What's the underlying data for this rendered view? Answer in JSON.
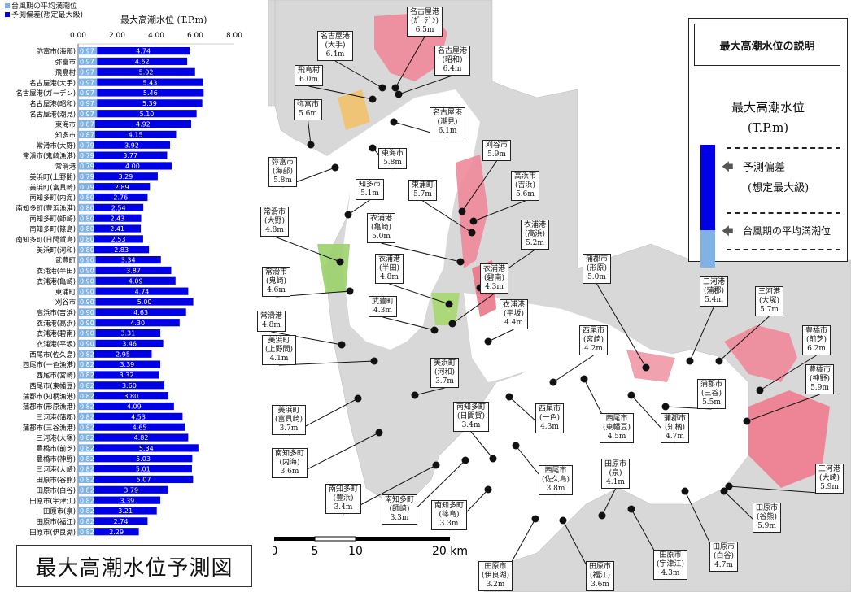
{
  "legend": {
    "avg_label": "台風期の平均満潮位",
    "dev_label": "予測偏差(想定最大級)",
    "avg_color": "#7fb3e6",
    "dev_color": "#0000e6"
  },
  "chart_data": {
    "type": "bar",
    "orientation": "horizontal",
    "stacked": true,
    "title": "最大高潮水位 (T.P.m)",
    "xlim": [
      0,
      8
    ],
    "xticks": [
      "0.00",
      "2.00",
      "4.00",
      "6.00",
      "8.00"
    ],
    "categories": [
      "弥富市(海部)",
      "弥富市",
      "飛島村",
      "名古屋港(大手)",
      "名古屋港(ガーデン)",
      "名古屋港(昭和)",
      "名古屋港(潮見)",
      "東海市",
      "知多市",
      "常滑市(大野)",
      "常滑市(鬼崎漁港)",
      "常滑港",
      "美浜町(上野間)",
      "美浜町(富具崎)",
      "南知多町(内海)",
      "南知多町(豊浜漁港)",
      "南知多町(師崎)",
      "南知多町(篠島)",
      "南知多町(日間賀島)",
      "美浜町(河和)",
      "武豊町",
      "衣浦港(半田)",
      "衣浦港(亀崎)",
      "東浦町",
      "刈谷市",
      "高浜市(吉浜)",
      "衣浦港(高浜)",
      "衣浦港(碧南)",
      "衣浦港(平坂)",
      "西尾市(佐久島)",
      "西尾市(一色漁港)",
      "西尾市(宮崎)",
      "西尾市(東幡豆)",
      "蒲郡市(知柄漁港)",
      "蒲郡市(形原漁港)",
      "三河港(蒲郡)",
      "蒲郡市(三谷漁港)",
      "三河港(大塚)",
      "豊橋市(前芝)",
      "豊橋市(神野)",
      "三河港(大崎)",
      "田原市(谷熊)",
      "田原市(白谷)",
      "田原市(宇津江)",
      "田原市(泉)",
      "田原市(福江)",
      "田原市(伊良湖)"
    ],
    "series": [
      {
        "name": "台風期の平均満潮位",
        "values": [
          0.97,
          0.97,
          0.97,
          0.97,
          0.97,
          0.97,
          0.97,
          0.87,
          0.87,
          0.79,
          0.79,
          0.79,
          0.79,
          0.79,
          0.8,
          0.8,
          0.8,
          0.8,
          0.8,
          0.8,
          0.9,
          0.9,
          0.9,
          0.9,
          0.9,
          0.9,
          0.9,
          0.9,
          0.9,
          0.82,
          0.82,
          0.82,
          0.82,
          0.82,
          0.82,
          0.82,
          0.82,
          0.82,
          0.82,
          0.82,
          0.82,
          0.82,
          0.82,
          0.82,
          0.82,
          0.82,
          0.82
        ]
      },
      {
        "name": "予測偏差(想定最大級)",
        "values": [
          4.74,
          4.62,
          5.02,
          5.43,
          5.46,
          5.39,
          5.1,
          4.92,
          4.15,
          3.92,
          3.77,
          4.0,
          3.29,
          2.89,
          2.76,
          2.54,
          2.43,
          2.41,
          2.53,
          2.83,
          3.34,
          3.87,
          4.09,
          4.74,
          5.0,
          4.63,
          4.3,
          3.31,
          3.46,
          2.95,
          3.39,
          3.32,
          3.6,
          3.8,
          4.09,
          4.53,
          4.65,
          4.82,
          5.34,
          5.03,
          5.01,
          5.07,
          3.79,
          3.39,
          3.21,
          2.74,
          2.29
        ]
      }
    ],
    "colors": [
      "#7fb3e6",
      "#0000e6"
    ]
  },
  "bigtitle": "最大高潮水位予測図",
  "map": {
    "labels": [
      {
        "lines": [
          "名古屋港",
          "(ｶﾞｰﾃﾞﾝ)",
          "6.5m"
        ]
      },
      {
        "lines": [
          "名古屋港",
          "(大手)",
          "6.4m"
        ]
      },
      {
        "lines": [
          "名古屋港",
          "(昭和)",
          "6.4m"
        ]
      },
      {
        "lines": [
          "飛島村",
          "6.0m"
        ]
      },
      {
        "lines": [
          "名古屋港",
          "(潮見)",
          "6.1m"
        ]
      },
      {
        "lines": [
          "弥富市",
          "5.6m"
        ]
      },
      {
        "lines": [
          "東海市",
          "5.8m"
        ]
      },
      {
        "lines": [
          "弥富市",
          "(海部)",
          "5.8m"
        ]
      },
      {
        "lines": [
          "刈谷市",
          "5.9m"
        ]
      },
      {
        "lines": [
          "高浜市",
          "(吉浜)",
          "5.6m"
        ]
      },
      {
        "lines": [
          "知多市",
          "5.1m"
        ]
      },
      {
        "lines": [
          "東浦町",
          "5.7m"
        ]
      },
      {
        "lines": [
          "常滑市",
          "(大野)",
          "4.8m"
        ]
      },
      {
        "lines": [
          "衣浦港",
          "(亀崎)",
          "5.0m"
        ]
      },
      {
        "lines": [
          "衣浦港",
          "(高浜)",
          "5.2m"
        ]
      },
      {
        "lines": [
          "衣浦港",
          "(半田)",
          "4.8m"
        ]
      },
      {
        "lines": [
          "衣浦港",
          "(碧南)",
          "4.3m"
        ]
      },
      {
        "lines": [
          "常滑市",
          "(鬼崎)",
          "4.6m"
        ]
      },
      {
        "lines": [
          "蒲郡市",
          "(形原)",
          "5.0m"
        ]
      },
      {
        "lines": [
          "三河港",
          "(蒲郡)",
          "5.4m"
        ]
      },
      {
        "lines": [
          "三河港",
          "(大塚)",
          "5.7m"
        ]
      },
      {
        "lines": [
          "武豊町",
          "4.3m"
        ]
      },
      {
        "lines": [
          "衣浦港",
          "(平坂)",
          "4.4m"
        ]
      },
      {
        "lines": [
          "常滑港",
          "4.8m"
        ]
      },
      {
        "lines": [
          "美浜町",
          "(上野間)",
          "4.1m"
        ]
      },
      {
        "lines": [
          "西尾市",
          "(宮崎)",
          "4.2m"
        ]
      },
      {
        "lines": [
          "豊橋市",
          "(前芝)",
          "6.2m"
        ]
      },
      {
        "lines": [
          "美浜町",
          "(河和)",
          "3.7m"
        ]
      },
      {
        "lines": [
          "蒲郡市",
          "(三谷)",
          "5.5m"
        ]
      },
      {
        "lines": [
          "豊橋市",
          "(神野)",
          "5.9m"
        ]
      },
      {
        "lines": [
          "南知多町",
          "(日間賀)",
          "3.4m"
        ]
      },
      {
        "lines": [
          "美浜町",
          "(富具崎)",
          "3.7m"
        ]
      },
      {
        "lines": [
          "西尾市",
          "(一色)",
          "4.3m"
        ]
      },
      {
        "lines": [
          "西尾市",
          "(東幡豆)",
          "4.5m"
        ]
      },
      {
        "lines": [
          "蒲郡市",
          "(知柄)",
          "4.7m"
        ]
      },
      {
        "lines": [
          "南知多町",
          "(内海)",
          "3.6m"
        ]
      },
      {
        "lines": [
          "西尾市",
          "(佐久島)",
          "3.8m"
        ]
      },
      {
        "lines": [
          "田原市",
          "(泉)",
          "4.1m"
        ]
      },
      {
        "lines": [
          "三河港",
          "(大崎)",
          "5.9m"
        ]
      },
      {
        "lines": [
          "南知多町",
          "(豊浜)",
          "3.4m"
        ]
      },
      {
        "lines": [
          "南知多町",
          "(師崎)",
          "3.3m"
        ]
      },
      {
        "lines": [
          "南知多町",
          "(篠島)",
          "3.3m"
        ]
      },
      {
        "lines": [
          "田原市",
          "(谷熊)",
          "5.9m"
        ]
      },
      {
        "lines": [
          "田原市",
          "(白谷)",
          "4.7m"
        ]
      },
      {
        "lines": [
          "田原市",
          "(宇津江)",
          "4.3m"
        ]
      },
      {
        "lines": [
          "田原市",
          "(伊良湖)",
          "3.2m"
        ]
      },
      {
        "lines": [
          "田原市",
          "(福江)",
          "3.6m"
        ]
      }
    ],
    "scale": {
      "ticks": [
        "0",
        "5",
        "10",
        "20 km"
      ]
    }
  },
  "explanation": {
    "title": "最大高潮水位の説明",
    "measure": "最大高潮水位",
    "unit": "(T.P.m)",
    "dev": "予測偏差",
    "dev_sub": "(想定最大級)",
    "avg": "台風期の平均満潮位",
    "arrow": "🡄"
  }
}
